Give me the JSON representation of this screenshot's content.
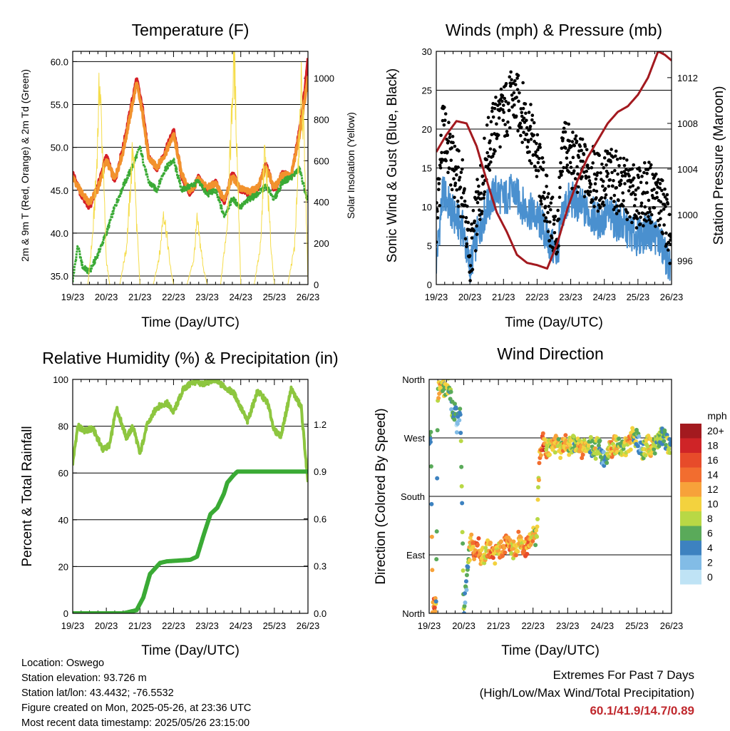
{
  "chart_data": [
    {
      "type": "line",
      "title": "Temperature (F)",
      "xlabel": "Time (Day/UTC)",
      "ylabel": "2m & 9m T (Red, Orange) & 2m Td (Green)",
      "y2label": "Solar Insolation (Yellow)",
      "x_ticks": [
        "19/23",
        "20/23",
        "21/23",
        "22/23",
        "23/23",
        "24/23",
        "25/23",
        "26/23"
      ],
      "xlim": [
        0,
        7
      ],
      "ylim": [
        34.0,
        61.2
      ],
      "y_ticks": [
        "35.0",
        "40.0",
        "45.0",
        "50.0",
        "55.0",
        "60.0"
      ],
      "y2lim": [
        0,
        1130
      ],
      "y2_ticks": [
        "0",
        "200",
        "400",
        "600",
        "800",
        "1000"
      ],
      "grid": true,
      "series": [
        {
          "name": "2m T",
          "color": "#d62027",
          "x": [
            0,
            0.25,
            0.5,
            0.75,
            1,
            1.25,
            1.5,
            1.75,
            1.9,
            2.1,
            2.25,
            2.5,
            2.75,
            3,
            3.25,
            3.5,
            3.75,
            4,
            4.25,
            4.5,
            4.75,
            5,
            5.25,
            5.5,
            5.75,
            6,
            6.25,
            6.5,
            6.75,
            6.9,
            7
          ],
          "values": [
            47.0,
            44.5,
            43.0,
            45.5,
            49.0,
            46.0,
            50.0,
            55.0,
            58.0,
            54.0,
            49.0,
            47.5,
            49.5,
            52.0,
            46.5,
            44.5,
            46.5,
            45.0,
            46.0,
            43.5,
            47.0,
            45.0,
            44.5,
            45.0,
            48.0,
            45.0,
            47.0,
            46.5,
            52.0,
            56.5,
            60.1
          ]
        },
        {
          "name": "9m T",
          "color": "#f2922d",
          "x": [
            0,
            0.25,
            0.5,
            0.75,
            1,
            1.25,
            1.5,
            1.75,
            1.9,
            2.1,
            2.25,
            2.5,
            2.75,
            3,
            3.25,
            3.5,
            3.75,
            4,
            4.25,
            4.5,
            4.75,
            5,
            5.25,
            5.5,
            5.75,
            6,
            6.25,
            6.5,
            6.75,
            6.9,
            7
          ],
          "values": [
            46.5,
            44.8,
            43.5,
            45.2,
            48.5,
            46.3,
            49.5,
            54.5,
            57.5,
            53.5,
            48.8,
            47.7,
            49.2,
            51.5,
            46.8,
            44.8,
            46.3,
            45.3,
            45.8,
            43.9,
            46.6,
            45.2,
            44.8,
            45.3,
            47.6,
            45.3,
            46.8,
            46.7,
            51.5,
            55.5,
            58.0
          ]
        },
        {
          "name": "2m Td",
          "color": "#3aaa35",
          "x": [
            0,
            0.15,
            0.3,
            0.5,
            0.75,
            1,
            1.25,
            1.5,
            1.75,
            2,
            2.25,
            2.5,
            2.75,
            3,
            3.25,
            3.5,
            3.75,
            4,
            4.25,
            4.5,
            4.75,
            5,
            5.25,
            5.5,
            5.75,
            6,
            6.25,
            6.5,
            6.75,
            7
          ],
          "values": [
            34.5,
            38.5,
            36.0,
            35.5,
            37.5,
            40.0,
            43.0,
            45.5,
            47.5,
            50.0,
            46.0,
            45.0,
            47.5,
            48.5,
            45.0,
            45.5,
            46.0,
            44.5,
            45.0,
            42.0,
            44.0,
            43.0,
            44.0,
            44.5,
            45.5,
            44.0,
            46.0,
            46.5,
            47.5,
            43.5
          ]
        },
        {
          "name": "Solar Insolation",
          "axis": "y2",
          "color": "#f5dc4a",
          "x": [
            0,
            0.2,
            0.45,
            0.6,
            0.7,
            0.8,
            0.9,
            1.0,
            1.1,
            1.2,
            1.4,
            1.6,
            1.7,
            1.8,
            1.9,
            2.0,
            2.2,
            2.4,
            2.6,
            2.7,
            2.8,
            2.9,
            3.0,
            3.2,
            3.4,
            3.6,
            3.7,
            3.8,
            3.9,
            4.0,
            4.2,
            4.4,
            4.6,
            4.7,
            4.8,
            4.9,
            5.0,
            5.2,
            5.4,
            5.6,
            5.7,
            5.8,
            5.9,
            6.0,
            6.2,
            6.4,
            6.6,
            6.7,
            6.8,
            6.9,
            7.0
          ],
          "values": [
            0,
            0,
            0,
            250,
            520,
            990,
            600,
            120,
            0,
            0,
            0,
            180,
            420,
            690,
            300,
            0,
            0,
            0,
            160,
            360,
            240,
            90,
            0,
            0,
            0,
            120,
            310,
            190,
            70,
            0,
            0,
            0,
            300,
            700,
            1100,
            600,
            0,
            0,
            0,
            200,
            640,
            470,
            180,
            0,
            0,
            0,
            180,
            520,
            960,
            650,
            0
          ]
        }
      ]
    },
    {
      "type": "scatter",
      "title": "Winds (mph) & Pressure (mb)",
      "xlabel": "Time (Day/UTC)",
      "ylabel": "Sonic Wind & Gust (Blue, Black)",
      "y2label": "Station Pressure (Maroon)",
      "x_ticks": [
        "19/23",
        "20/23",
        "21/23",
        "22/23",
        "23/23",
        "24/23",
        "25/23",
        "26/23"
      ],
      "xlim": [
        0,
        7
      ],
      "ylim": [
        0,
        30
      ],
      "y_ticks": [
        "0",
        "5",
        "10",
        "15",
        "20",
        "25",
        "30"
      ],
      "y2lim": [
        993.9,
        1014.3
      ],
      "y2_ticks": [
        "996",
        "1000",
        "1004",
        "1008",
        "1012"
      ],
      "grid": true,
      "series": [
        {
          "name": "Wind",
          "color": "#4a90cf",
          "x": [
            0,
            0.2,
            0.5,
            0.8,
            1.0,
            1.2,
            1.5,
            1.8,
            2.0,
            2.3,
            2.6,
            2.9,
            3.1,
            3.4,
            3.6,
            3.8,
            4.0,
            4.3,
            4.6,
            4.9,
            5.1,
            5.4,
            5.7,
            6.0,
            6.3,
            6.6,
            6.9,
            7.0
          ],
          "values": [
            3,
            12,
            9,
            7,
            2,
            6,
            10,
            12,
            11,
            12,
            10,
            9,
            8,
            5,
            4,
            10,
            11,
            10,
            9,
            8,
            9,
            8,
            7,
            6,
            7,
            6,
            3,
            1
          ]
        },
        {
          "name": "Gust",
          "color": "#000000",
          "x": [
            0,
            0.2,
            0.5,
            0.8,
            1.0,
            1.2,
            1.5,
            1.8,
            2.0,
            2.3,
            2.6,
            2.9,
            3.1,
            3.4,
            3.6,
            3.8,
            4.0,
            4.3,
            4.6,
            4.9,
            5.1,
            5.4,
            5.7,
            6.0,
            6.3,
            6.6,
            6.9,
            7.0
          ],
          "values": [
            8,
            20,
            15,
            12,
            3,
            9,
            17,
            21,
            22,
            24,
            22,
            18,
            14,
            8,
            6,
            19,
            16,
            15,
            14,
            13,
            14,
            13,
            12,
            11,
            12,
            11,
            8,
            2
          ]
        },
        {
          "name": "Pressure",
          "axis": "y2",
          "color": "#a3191f",
          "x": [
            0,
            0.3,
            0.6,
            0.9,
            1.2,
            1.5,
            1.8,
            2.1,
            2.4,
            2.7,
            3.0,
            3.3,
            3.6,
            3.9,
            4.2,
            4.5,
            4.8,
            5.1,
            5.4,
            5.7,
            6.0,
            6.3,
            6.6,
            6.8,
            7.0
          ],
          "values": [
            1005.5,
            1007.0,
            1008.2,
            1008.0,
            1006.0,
            1003.0,
            1000.2,
            998.5,
            996.5,
            995.8,
            995.6,
            995.3,
            997.5,
            1000.5,
            1003.0,
            1005.0,
            1006.5,
            1008.0,
            1009.0,
            1009.5,
            1010.5,
            1012.0,
            1014.3,
            1014.0,
            1013.5
          ]
        }
      ]
    },
    {
      "type": "line",
      "title": "Relative Humidity (%) & Precipitation (in)",
      "xlabel": "Time (Day/UTC)",
      "ylabel": "Percent & Total Rainfall",
      "x_ticks": [
        "19/23",
        "20/23",
        "21/23",
        "22/23",
        "23/23",
        "24/23",
        "25/23",
        "26/23"
      ],
      "xlim": [
        0,
        7
      ],
      "ylim": [
        0,
        100
      ],
      "y_ticks": [
        "0",
        "20",
        "40",
        "60",
        "80",
        "100"
      ],
      "y2lim": [
        0,
        1.485
      ],
      "y2_ticks": [
        "0.0",
        "0.3",
        "0.6",
        "0.9",
        "1.2"
      ],
      "grid": true,
      "series": [
        {
          "name": "Relative Humidity",
          "color": "#8dc63f",
          "x": [
            0,
            0.15,
            0.35,
            0.6,
            0.9,
            1.1,
            1.3,
            1.6,
            1.8,
            2.0,
            2.2,
            2.5,
            2.8,
            3.0,
            3.3,
            3.6,
            3.9,
            4.2,
            4.5,
            4.8,
            5.0,
            5.2,
            5.5,
            5.8,
            6.0,
            6.2,
            6.5,
            6.8,
            7.0
          ],
          "values": [
            64,
            80,
            78,
            79,
            70,
            72,
            88,
            75,
            80,
            68,
            80,
            88,
            90,
            86,
            96,
            99,
            98,
            100,
            97,
            94,
            88,
            82,
            95,
            90,
            78,
            76,
            96,
            88,
            55
          ]
        },
        {
          "name": "Total Rainfall",
          "axis": "y2",
          "color": "#3aaa35",
          "x": [
            0,
            1.5,
            1.9,
            2.1,
            2.3,
            2.6,
            2.8,
            3.5,
            3.7,
            3.9,
            4.1,
            4.3,
            4.5,
            4.6,
            4.8,
            4.9,
            5.0,
            7.0
          ],
          "values": [
            0,
            0,
            0.02,
            0.1,
            0.25,
            0.32,
            0.33,
            0.34,
            0.36,
            0.5,
            0.63,
            0.67,
            0.76,
            0.83,
            0.88,
            0.9,
            0.9,
            0.9
          ]
        }
      ]
    },
    {
      "type": "scatter",
      "title": "Wind Direction",
      "xlabel": "Time (Day/UTC)",
      "ylabel": "Direction (Colored By Speed)",
      "x_ticks": [
        "19/23",
        "20/23",
        "21/23",
        "22/23",
        "23/23",
        "24/23",
        "25/23",
        "26/23"
      ],
      "xlim": [
        0,
        7
      ],
      "ylim": [
        0,
        360
      ],
      "y_ticks": [
        "North",
        "East",
        "South",
        "West",
        "North"
      ],
      "grid": true,
      "legend": {
        "title": "mph",
        "labels": [
          "20+",
          "18",
          "16",
          "14",
          "12",
          "10",
          "8",
          "6",
          "4",
          "2",
          "0"
        ],
        "colors": [
          "#a31a1f",
          "#cf2427",
          "#e74b2a",
          "#f26d2f",
          "#f7a23a",
          "#f3d23e",
          "#b9d845",
          "#5aaa5a",
          "#3d82c0",
          "#82bce6",
          "#bfe3f5"
        ]
      },
      "series": [
        {
          "name": "Direction",
          "x": [
            0.05,
            0.1,
            0.15,
            0.2,
            0.25,
            0.3,
            0.35,
            0.4,
            0.45,
            0.5,
            0.55,
            0.6,
            0.7,
            0.75,
            0.8,
            0.9,
            1.0,
            1.05,
            1.1,
            1.15,
            1.2,
            1.3,
            1.4,
            1.5,
            1.6,
            1.7,
            1.8,
            1.9,
            2.0,
            2.1,
            2.2,
            2.3,
            2.4,
            2.5,
            2.6,
            2.7,
            2.8,
            2.9,
            3.0,
            3.1,
            3.2,
            3.3,
            3.4,
            3.5,
            3.6,
            3.7,
            3.8,
            3.9,
            4.0,
            4.1,
            4.2,
            4.3,
            4.4,
            4.5,
            4.6,
            4.7,
            4.8,
            4.9,
            5.0,
            5.1,
            5.2,
            5.3,
            5.4,
            5.5,
            5.6,
            5.7,
            5.8,
            5.9,
            6.0,
            6.1,
            6.2,
            6.3,
            6.4,
            6.5,
            6.6,
            6.7,
            6.8,
            6.9,
            7.0
          ],
          "values": [
            270,
            15,
            12,
            8,
            335,
            350,
            352,
            348,
            345,
            352,
            350,
            340,
            300,
            320,
            290,
            315,
            5,
            30,
            60,
            85,
            110,
            95,
            110,
            85,
            90,
            100,
            95,
            90,
            95,
            100,
            105,
            110,
            95,
            100,
            115,
            105,
            100,
            110,
            120,
            115,
            250,
            265,
            250,
            255,
            262,
            258,
            250,
            265,
            255,
            258,
            262,
            255,
            250,
            258,
            262,
            255,
            250,
            265,
            240,
            230,
            250,
            255,
            262,
            255,
            250,
            258,
            262,
            275,
            268,
            255,
            250,
            262,
            255,
            258,
            265,
            272,
            270,
            260,
            250
          ],
          "speeds": [
            4,
            12,
            16,
            6,
            8,
            10,
            12,
            8,
            6,
            10,
            8,
            6,
            4,
            4,
            2,
            6,
            6,
            4,
            4,
            8,
            10,
            12,
            14,
            12,
            10,
            12,
            14,
            12,
            10,
            12,
            12,
            14,
            10,
            12,
            10,
            12,
            14,
            12,
            10,
            8,
            12,
            16,
            10,
            8,
            12,
            10,
            8,
            12,
            10,
            8,
            6,
            10,
            12,
            10,
            8,
            6,
            10,
            8,
            4,
            4,
            10,
            12,
            10,
            8,
            6,
            10,
            12,
            8,
            6,
            4,
            8,
            10,
            12,
            8,
            6,
            6,
            4,
            8,
            4
          ]
        }
      ]
    }
  ],
  "info": {
    "location": "Location: Oswego",
    "elevation": "Station elevation: 93.726 m",
    "latlon": "Station lat/lon: 43.4432; -76.5532",
    "created": "Figure created on Mon, 2025-05-26, at 23:36 UTC",
    "timestamp": "Most recent data timestamp: 2025/05/26 23:15:00"
  },
  "extremes": {
    "line1": "Extremes For Past 7 Days",
    "line2": "(High/Low/Max Wind/Total Precipitation)",
    "values": "60.1/41.9/14.7/0.89"
  }
}
